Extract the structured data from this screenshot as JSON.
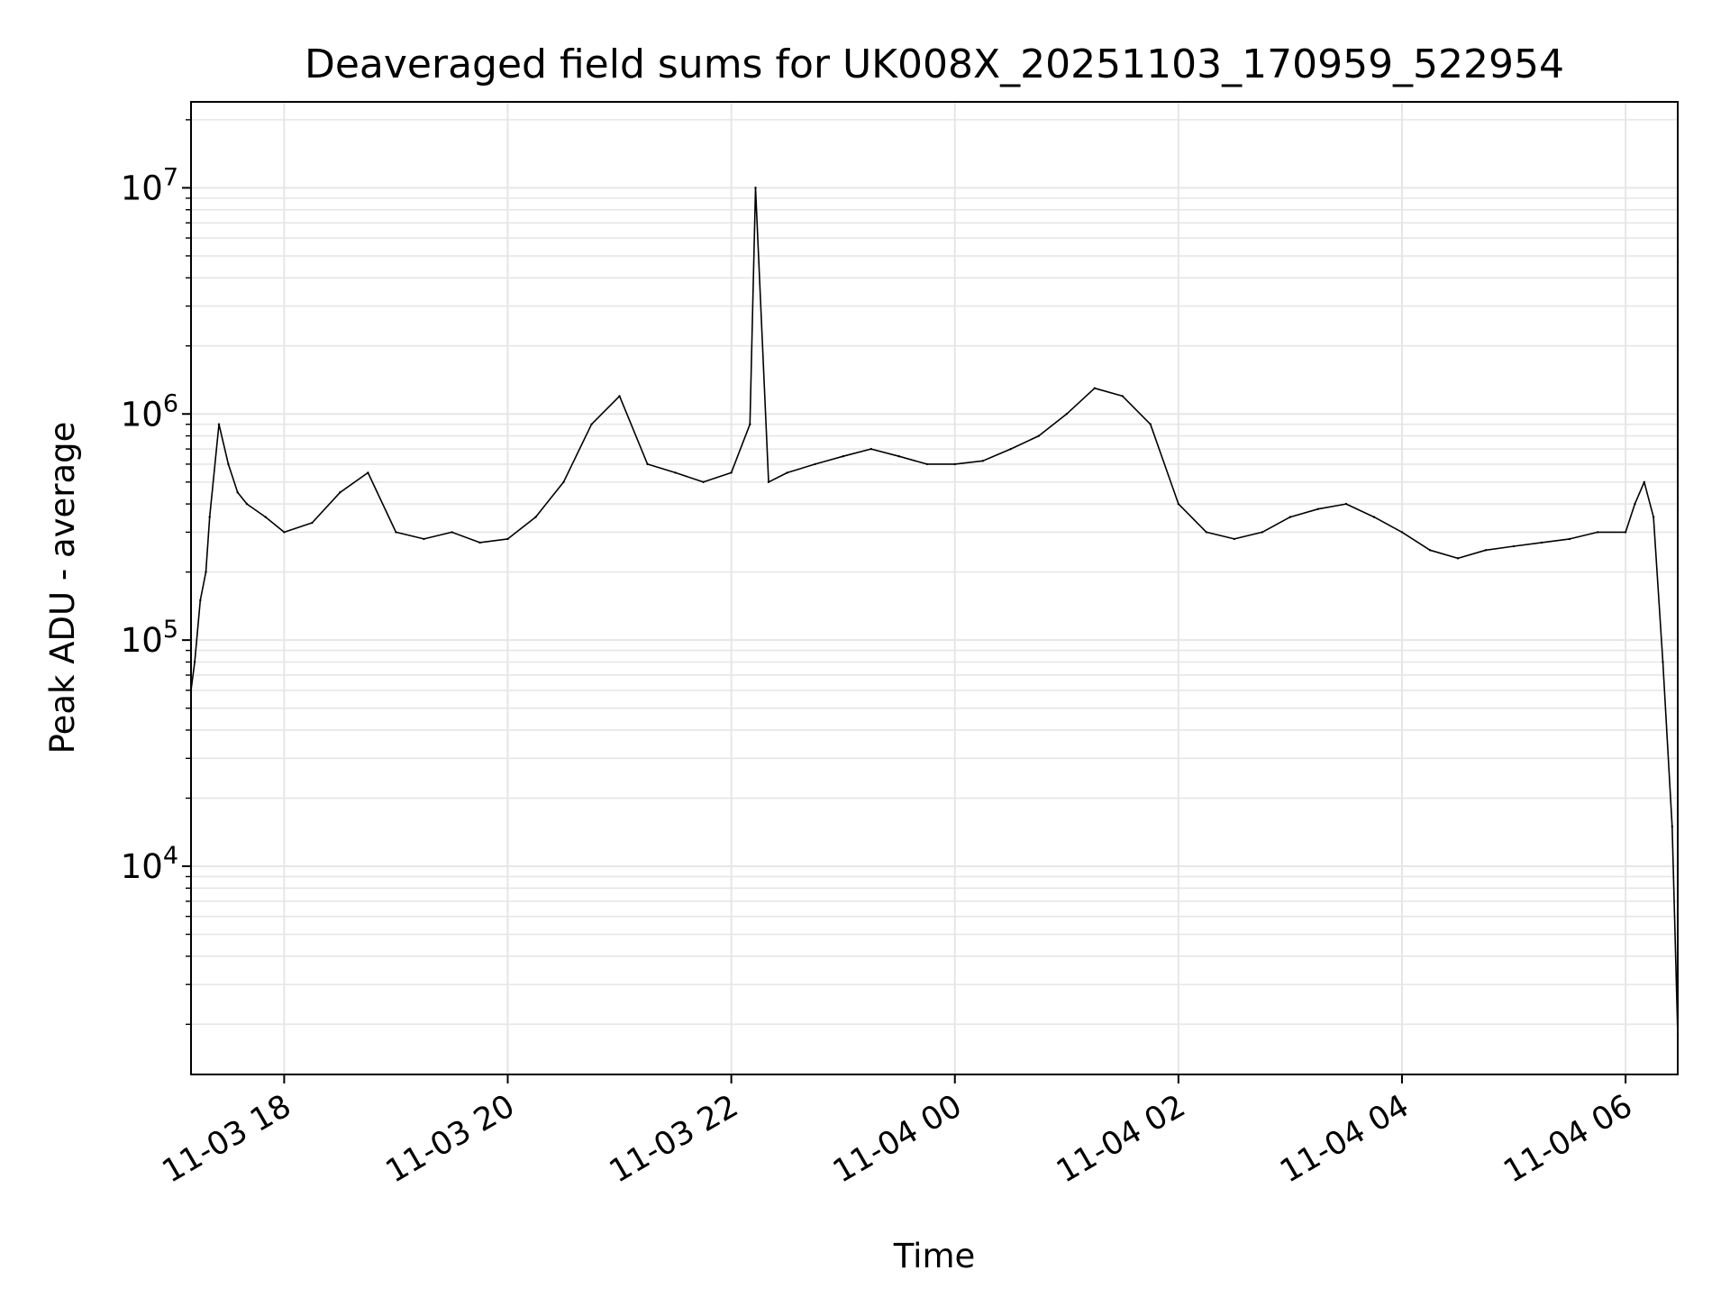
{
  "chart_data": {
    "type": "line",
    "title": "Deaveraged field sums for UK008X_20251103_170959_522954",
    "xlabel": "Time",
    "ylabel": "Peak ADU - average",
    "yscale": "log",
    "xlim": [
      "2025-11-03 17:10",
      "2025-11-04 06:28"
    ],
    "ylim": [
      1200,
      24000000
    ],
    "grid": true,
    "line_color": "#000000",
    "grid_color": "#e6e6e6",
    "x_ticks": [
      {
        "value": "2025-11-03 18:00",
        "label": "11-03 18"
      },
      {
        "value": "2025-11-03 20:00",
        "label": "11-03 20"
      },
      {
        "value": "2025-11-03 22:00",
        "label": "11-03 22"
      },
      {
        "value": "2025-11-04 00:00",
        "label": "11-04 00"
      },
      {
        "value": "2025-11-04 02:00",
        "label": "11-04 02"
      },
      {
        "value": "2025-11-04 04:00",
        "label": "11-04 04"
      },
      {
        "value": "2025-11-04 06:00",
        "label": "11-04 06"
      }
    ],
    "y_ticks": [
      {
        "value": 10000,
        "base": "10",
        "exp": "4"
      },
      {
        "value": 100000,
        "base": "10",
        "exp": "5"
      },
      {
        "value": 1000000,
        "base": "10",
        "exp": "6"
      },
      {
        "value": 10000000,
        "base": "10",
        "exp": "7"
      }
    ],
    "series": [
      {
        "x": [
          "2025-11-03 17:10",
          "2025-11-03 17:12",
          "2025-11-03 17:15",
          "2025-11-03 17:18",
          "2025-11-03 17:20",
          "2025-11-03 17:25",
          "2025-11-03 17:30",
          "2025-11-03 17:35",
          "2025-11-03 17:40",
          "2025-11-03 17:50",
          "2025-11-03 18:00",
          "2025-11-03 18:15",
          "2025-11-03 18:30",
          "2025-11-03 18:45",
          "2025-11-03 19:00",
          "2025-11-03 19:15",
          "2025-11-03 19:30",
          "2025-11-03 19:45",
          "2025-11-03 20:00",
          "2025-11-03 20:15",
          "2025-11-03 20:30",
          "2025-11-03 20:45",
          "2025-11-03 21:00",
          "2025-11-03 21:15",
          "2025-11-03 21:30",
          "2025-11-03 21:45",
          "2025-11-03 22:00",
          "2025-11-03 22:10",
          "2025-11-03 22:13",
          "2025-11-03 22:20",
          "2025-11-03 22:30",
          "2025-11-03 22:45",
          "2025-11-03 23:00",
          "2025-11-03 23:15",
          "2025-11-03 23:30",
          "2025-11-03 23:45",
          "2025-11-04 00:00",
          "2025-11-04 00:15",
          "2025-11-04 00:30",
          "2025-11-04 00:45",
          "2025-11-04 01:00",
          "2025-11-04 01:15",
          "2025-11-04 01:30",
          "2025-11-04 01:45",
          "2025-11-04 02:00",
          "2025-11-04 02:15",
          "2025-11-04 02:30",
          "2025-11-04 02:45",
          "2025-11-04 03:00",
          "2025-11-04 03:15",
          "2025-11-04 03:30",
          "2025-11-04 03:45",
          "2025-11-04 04:00",
          "2025-11-04 04:15",
          "2025-11-04 04:30",
          "2025-11-04 04:45",
          "2025-11-04 05:00",
          "2025-11-04 05:15",
          "2025-11-04 05:30",
          "2025-11-04 05:45",
          "2025-11-04 06:00",
          "2025-11-04 06:05",
          "2025-11-04 06:10",
          "2025-11-04 06:15",
          "2025-11-04 06:20",
          "2025-11-04 06:25",
          "2025-11-04 06:28"
        ],
        "values": [
          60000,
          80000,
          150000,
          200000,
          350000,
          900000,
          600000,
          450000,
          400000,
          350000,
          300000,
          330000,
          450000,
          550000,
          300000,
          280000,
          300000,
          270000,
          280000,
          350000,
          500000,
          900000,
          1200000,
          600000,
          550000,
          500000,
          550000,
          900000,
          10000000,
          500000,
          550000,
          600000,
          650000,
          700000,
          650000,
          600000,
          600000,
          620000,
          700000,
          800000,
          1000000,
          1300000,
          1200000,
          900000,
          400000,
          300000,
          280000,
          300000,
          350000,
          380000,
          400000,
          350000,
          300000,
          250000,
          230000,
          250000,
          260000,
          270000,
          280000,
          300000,
          300000,
          400000,
          500000,
          350000,
          80000,
          15000,
          1800
        ]
      }
    ]
  }
}
